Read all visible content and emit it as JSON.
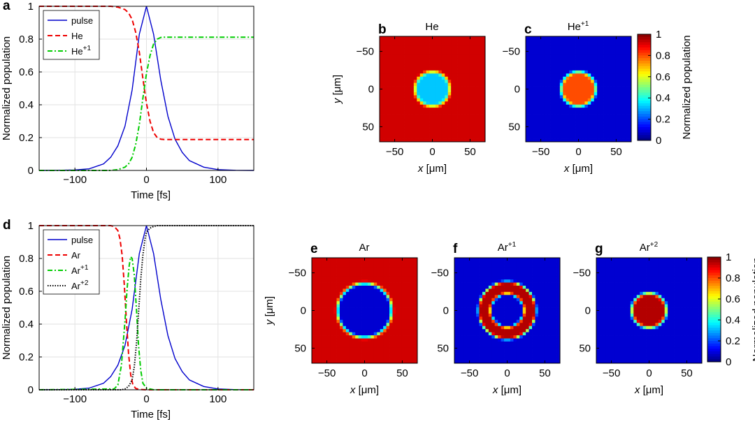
{
  "chart_data": [
    {
      "panel": "a",
      "type": "line",
      "xlabel": "Time [fs]",
      "ylabel": "Normalized population",
      "xlim": [
        -150,
        150
      ],
      "ylim": [
        0,
        1
      ],
      "xticks": [
        "-100",
        "0",
        "100"
      ],
      "yticks": [
        "0",
        "0.2",
        "0.4",
        "0.6",
        "0.8",
        "1"
      ],
      "grid": true,
      "legend": "top-left",
      "series": [
        {
          "name": "pulse",
          "color": "#0000cc",
          "style": "solid",
          "x": [
            -150,
            -125,
            -100,
            -80,
            -60,
            -50,
            -40,
            -30,
            -20,
            -10,
            0,
            10,
            20,
            30,
            40,
            50,
            60,
            80,
            100,
            125,
            150
          ],
          "y": [
            0,
            0.001,
            0.003,
            0.01,
            0.04,
            0.08,
            0.15,
            0.27,
            0.49,
            0.83,
            1.0,
            0.83,
            0.55,
            0.33,
            0.19,
            0.11,
            0.06,
            0.02,
            0.005,
            0.001,
            0
          ]
        },
        {
          "name": "He",
          "color": "#ee0000",
          "style": "dashed",
          "x": [
            -150,
            -50,
            -40,
            -30,
            -25,
            -20,
            -15,
            -10,
            -5,
            0,
            5,
            10,
            15,
            20,
            25,
            30,
            50,
            150
          ],
          "y": [
            1,
            1,
            0.995,
            0.98,
            0.96,
            0.92,
            0.84,
            0.72,
            0.56,
            0.41,
            0.3,
            0.23,
            0.2,
            0.19,
            0.188,
            0.188,
            0.188,
            0.188
          ]
        },
        {
          "name": "He+1",
          "color": "#00cc00",
          "style": "dashdot",
          "x": [
            -150,
            -50,
            -40,
            -30,
            -25,
            -20,
            -15,
            -10,
            -5,
            0,
            5,
            10,
            15,
            20,
            25,
            30,
            50,
            150
          ],
          "y": [
            0,
            0,
            0.005,
            0.02,
            0.04,
            0.08,
            0.16,
            0.28,
            0.44,
            0.59,
            0.7,
            0.77,
            0.8,
            0.81,
            0.812,
            0.812,
            0.812,
            0.812
          ]
        }
      ],
      "legend_labels": [
        {
          "base": "pulse",
          "sup": ""
        },
        {
          "base": "He",
          "sup": ""
        },
        {
          "base": "He",
          "sup": "+1"
        }
      ]
    },
    {
      "panel": "d",
      "type": "line",
      "xlabel": "Time [fs]",
      "ylabel": "Normalized population",
      "xlim": [
        -150,
        150
      ],
      "ylim": [
        0,
        1
      ],
      "xticks": [
        "-100",
        "0",
        "100"
      ],
      "yticks": [
        "0",
        "0.2",
        "0.4",
        "0.6",
        "0.8",
        "1"
      ],
      "grid": true,
      "legend": "top-left",
      "series": [
        {
          "name": "pulse",
          "color": "#0000cc",
          "style": "solid",
          "x": [
            -150,
            -125,
            -100,
            -80,
            -60,
            -50,
            -40,
            -30,
            -20,
            -10,
            0,
            10,
            20,
            30,
            40,
            50,
            60,
            80,
            100,
            125,
            150
          ],
          "y": [
            0,
            0.001,
            0.003,
            0.01,
            0.04,
            0.08,
            0.15,
            0.27,
            0.49,
            0.83,
            1.0,
            0.83,
            0.55,
            0.33,
            0.19,
            0.11,
            0.06,
            0.02,
            0.005,
            0.001,
            0
          ]
        },
        {
          "name": "Ar",
          "color": "#ee0000",
          "style": "dashed",
          "x": [
            -150,
            -50,
            -45,
            -40,
            -37,
            -34,
            -31,
            -28,
            -25,
            -22,
            -19,
            -15,
            -10,
            0,
            150
          ],
          "y": [
            1,
            1,
            0.995,
            0.97,
            0.92,
            0.82,
            0.64,
            0.42,
            0.22,
            0.09,
            0.03,
            0.008,
            0.002,
            0,
            0
          ]
        },
        {
          "name": "Ar+1",
          "color": "#00cc00",
          "style": "dashdot",
          "x": [
            -150,
            -45,
            -40,
            -35,
            -30,
            -27,
            -24,
            -22,
            -20,
            -17,
            -14,
            -11,
            -8,
            -5,
            0,
            10,
            150
          ],
          "y": [
            0,
            0.005,
            0.03,
            0.15,
            0.42,
            0.62,
            0.76,
            0.81,
            0.8,
            0.7,
            0.49,
            0.27,
            0.12,
            0.04,
            0.01,
            0,
            0
          ]
        },
        {
          "name": "Ar+2",
          "color": "#000000",
          "style": "dotted",
          "x": [
            -150,
            -35,
            -30,
            -25,
            -20,
            -17,
            -14,
            -11,
            -8,
            -5,
            -2,
            0,
            5,
            10,
            15,
            20,
            150
          ],
          "y": [
            0,
            0,
            0.005,
            0.02,
            0.06,
            0.14,
            0.28,
            0.47,
            0.67,
            0.82,
            0.92,
            0.96,
            0.985,
            0.995,
            1,
            1,
            1
          ]
        }
      ],
      "legend_labels": [
        {
          "base": "pulse",
          "sup": ""
        },
        {
          "base": "Ar",
          "sup": ""
        },
        {
          "base": "Ar",
          "sup": "+1"
        },
        {
          "base": "Ar",
          "sup": "+2"
        }
      ]
    },
    {
      "panel": "b",
      "type": "heatmap",
      "title": {
        "base": "He",
        "sup": ""
      },
      "xlabel": "x [μm]",
      "ylabel": "y [μm]",
      "xlim": [
        -70,
        70
      ],
      "ylim": [
        70,
        -70
      ],
      "xticks": [
        "-50",
        "0",
        "50"
      ],
      "yticks": [
        "-50",
        "0",
        "50"
      ],
      "colormap": "jet",
      "background_value": 0.92,
      "profile": {
        "shape": "disk",
        "radius": 25,
        "center_value": 0.32,
        "edge_value": 0.92
      }
    },
    {
      "panel": "c",
      "type": "heatmap",
      "title": {
        "base": "He",
        "sup": "+1"
      },
      "xlabel": "x [μm]",
      "ylabel": "",
      "xlim": [
        -70,
        70
      ],
      "ylim": [
        70,
        -70
      ],
      "xticks": [
        "-50",
        "0",
        "50"
      ],
      "yticks": [
        "-50",
        "0",
        "50"
      ],
      "colormap": "jet",
      "background_value": 0.08,
      "profile": {
        "shape": "disk",
        "radius": 25,
        "center_value": 0.8,
        "edge_value": 0.08
      }
    },
    {
      "panel": "e",
      "type": "heatmap",
      "title": {
        "base": "Ar",
        "sup": ""
      },
      "xlabel": "x [μm]",
      "ylabel": "y [μm]",
      "xlim": [
        -70,
        70
      ],
      "ylim": [
        70,
        -70
      ],
      "xticks": [
        "-50",
        "0",
        "50"
      ],
      "yticks": [
        "-50",
        "0",
        "50"
      ],
      "colormap": "jet",
      "background_value": 0.92,
      "profile": {
        "shape": "disk",
        "radius": 38,
        "center_value": 0.08,
        "edge_value": 0.92
      }
    },
    {
      "panel": "f",
      "type": "heatmap",
      "title": {
        "base": "Ar",
        "sup": "+1"
      },
      "xlabel": "x [μm]",
      "ylabel": "",
      "xlim": [
        -70,
        70
      ],
      "ylim": [
        70,
        -70
      ],
      "xticks": [
        "-50",
        "0",
        "50"
      ],
      "yticks": [
        "-50",
        "0",
        "50"
      ],
      "colormap": "jet",
      "background_value": 0.08,
      "profile": {
        "shape": "ring",
        "inner_radius": 22,
        "outer_radius": 38,
        "center_value": 0.08,
        "ring_value": 0.95,
        "edge_value": 0.08
      }
    },
    {
      "panel": "g",
      "type": "heatmap",
      "title": {
        "base": "Ar",
        "sup": "+2"
      },
      "xlabel": "x [μm]",
      "ylabel": "",
      "xlim": [
        -70,
        70
      ],
      "ylim": [
        70,
        -70
      ],
      "xticks": [
        "-50",
        "0",
        "50"
      ],
      "yticks": [
        "-50",
        "0",
        "50"
      ],
      "colormap": "jet",
      "background_value": 0.08,
      "profile": {
        "shape": "disk",
        "radius": 25,
        "center_value": 0.95,
        "edge_value": 0.08
      }
    }
  ],
  "colorbars": [
    {
      "label": "Normalized population",
      "ticks": [
        "0",
        "0.2",
        "0.4",
        "0.6",
        "0.8",
        "1"
      ],
      "range": [
        0,
        1
      ]
    },
    {
      "label": "Normalized population",
      "ticks": [
        "0",
        "0.2",
        "0.4",
        "0.6",
        "0.8",
        "1"
      ],
      "range": [
        0,
        1
      ]
    }
  ]
}
